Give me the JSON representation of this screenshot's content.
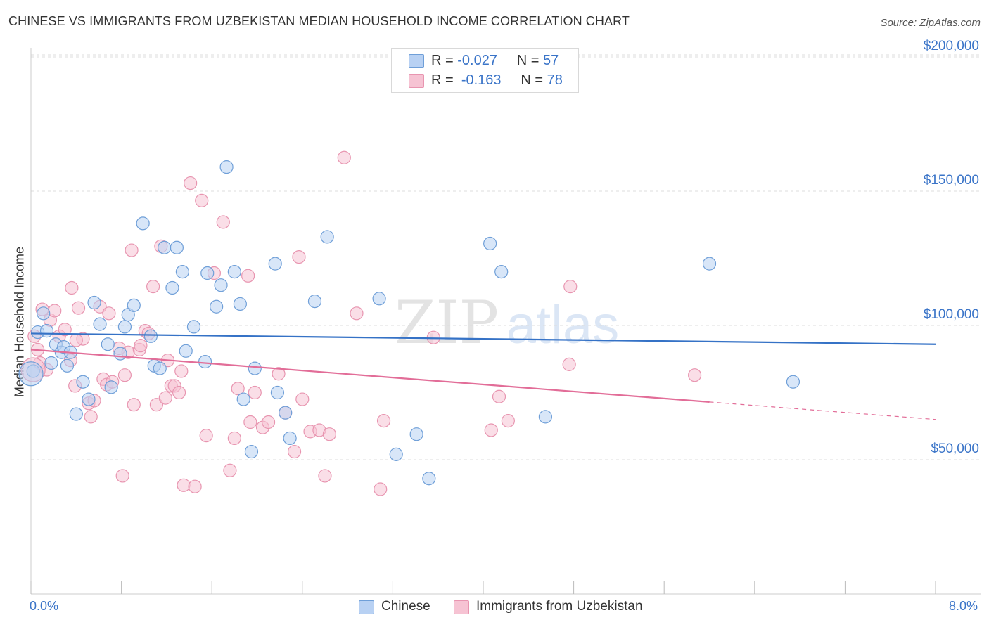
{
  "title": "CHINESE VS IMMIGRANTS FROM UZBEKISTAN MEDIAN HOUSEHOLD INCOME CORRELATION CHART",
  "source": "Source: ZipAtlas.com",
  "watermark": {
    "zip": "ZIP",
    "atlas": "atlas"
  },
  "legend": {
    "rows": [
      {
        "r_label": "R =",
        "r_value": "-0.027",
        "n_label": "N =",
        "n_value": "57"
      },
      {
        "r_label": "R =",
        "r_value": "-0.163",
        "n_label": "N =",
        "n_value": "78"
      }
    ]
  },
  "colors": {
    "blue_fill": "#b8d1f3",
    "blue_stroke": "#6f9fd8",
    "blue_line": "#3572c6",
    "pink_fill": "#f6c3d3",
    "pink_stroke": "#e895b0",
    "pink_line": "#e26d98",
    "axis_text": "#3a74c8",
    "grid": "#dddddd"
  },
  "chart_data": {
    "type": "scatter",
    "title": "CHINESE VS IMMIGRANTS FROM UZBEKISTAN MEDIAN HOUSEHOLD INCOME CORRELATION CHART",
    "xlabel": "",
    "ylabel": "Median Household Income",
    "xlim": [
      0,
      8
    ],
    "ylim": [
      5000,
      215000
    ],
    "x_tick_labels": [
      "0.0%",
      "8.0%"
    ],
    "y_ticks": [
      50000,
      100000,
      150000,
      200000
    ],
    "y_tick_labels": [
      "$50,000",
      "$100,000",
      "$150,000",
      "$200,000"
    ],
    "grid": true,
    "series": [
      {
        "name": "Chinese",
        "r": -0.027,
        "n": 57,
        "trend": {
          "x0": 0.0,
          "y0": 97000,
          "x1": 8.0,
          "y1": 93000,
          "solid_until": 8.0
        },
        "points": [
          [
            0.02,
            83000
          ],
          [
            0.06,
            97500
          ],
          [
            0.11,
            104500
          ],
          [
            0.14,
            98000
          ],
          [
            0.18,
            86000
          ],
          [
            0.22,
            93000
          ],
          [
            0.27,
            90000
          ],
          [
            0.29,
            92000
          ],
          [
            0.32,
            85000
          ],
          [
            0.35,
            90000
          ],
          [
            0.4,
            67000
          ],
          [
            0.46,
            79000
          ],
          [
            0.51,
            72500
          ],
          [
            0.56,
            108500
          ],
          [
            0.61,
            100500
          ],
          [
            0.68,
            93000
          ],
          [
            0.71,
            77000
          ],
          [
            0.79,
            89500
          ],
          [
            0.83,
            99500
          ],
          [
            0.86,
            104000
          ],
          [
            0.91,
            107500
          ],
          [
            0.99,
            138000
          ],
          [
            1.06,
            96000
          ],
          [
            1.09,
            85000
          ],
          [
            1.14,
            84000
          ],
          [
            1.18,
            129000
          ],
          [
            1.25,
            114000
          ],
          [
            1.29,
            129000
          ],
          [
            1.34,
            120000
          ],
          [
            1.37,
            90500
          ],
          [
            1.44,
            99500
          ],
          [
            1.54,
            86500
          ],
          [
            1.56,
            119500
          ],
          [
            1.64,
            107000
          ],
          [
            1.68,
            115000
          ],
          [
            1.73,
            159000
          ],
          [
            1.8,
            120000
          ],
          [
            1.85,
            108000
          ],
          [
            1.88,
            72500
          ],
          [
            1.95,
            53000
          ],
          [
            1.98,
            84000
          ],
          [
            2.16,
            123000
          ],
          [
            2.18,
            75000
          ],
          [
            2.25,
            67500
          ],
          [
            2.29,
            58000
          ],
          [
            2.51,
            109000
          ],
          [
            2.62,
            133000
          ],
          [
            3.08,
            110000
          ],
          [
            3.23,
            52000
          ],
          [
            3.41,
            59500
          ],
          [
            3.52,
            43000
          ],
          [
            4.06,
            130500
          ],
          [
            4.16,
            120000
          ],
          [
            4.55,
            66000
          ],
          [
            6.0,
            123000
          ],
          [
            6.74,
            79000
          ],
          [
            0.0,
            82000
          ]
        ]
      },
      {
        "name": "Immigrants from Uzbekistan",
        "r": -0.163,
        "n": 78,
        "trend": {
          "x0": 0.0,
          "y0": 91000,
          "x1": 8.0,
          "y1": 65000,
          "solid_until": 6.0
        },
        "points": [
          [
            0.03,
            96000
          ],
          [
            0.06,
            91000
          ],
          [
            0.1,
            106000
          ],
          [
            0.14,
            83500
          ],
          [
            0.17,
            102000
          ],
          [
            0.21,
            105500
          ],
          [
            0.25,
            96000
          ],
          [
            0.3,
            98500
          ],
          [
            0.35,
            87000
          ],
          [
            0.36,
            114000
          ],
          [
            0.39,
            77500
          ],
          [
            0.42,
            106500
          ],
          [
            0.46,
            95000
          ],
          [
            0.51,
            71000
          ],
          [
            0.53,
            66000
          ],
          [
            0.56,
            72000
          ],
          [
            0.61,
            107000
          ],
          [
            0.64,
            80000
          ],
          [
            0.67,
            78000
          ],
          [
            0.69,
            104500
          ],
          [
            0.72,
            79000
          ],
          [
            0.78,
            91500
          ],
          [
            0.81,
            44000
          ],
          [
            0.83,
            81500
          ],
          [
            0.86,
            90000
          ],
          [
            0.89,
            128000
          ],
          [
            0.91,
            70500
          ],
          [
            0.96,
            91000
          ],
          [
            1.01,
            98000
          ],
          [
            1.04,
            97000
          ],
          [
            1.08,
            114500
          ],
          [
            1.11,
            70500
          ],
          [
            1.15,
            129500
          ],
          [
            1.19,
            73000
          ],
          [
            1.21,
            87000
          ],
          [
            1.24,
            77500
          ],
          [
            1.27,
            77500
          ],
          [
            1.31,
            75000
          ],
          [
            1.35,
            40500
          ],
          [
            1.41,
            153000
          ],
          [
            1.45,
            40000
          ],
          [
            1.51,
            146500
          ],
          [
            1.55,
            59000
          ],
          [
            1.62,
            119500
          ],
          [
            1.7,
            138500
          ],
          [
            1.76,
            46000
          ],
          [
            1.8,
            58000
          ],
          [
            1.83,
            76500
          ],
          [
            1.92,
            118500
          ],
          [
            1.98,
            75000
          ],
          [
            2.05,
            62000
          ],
          [
            2.1,
            64000
          ],
          [
            2.19,
            82000
          ],
          [
            2.25,
            67500
          ],
          [
            2.33,
            53000
          ],
          [
            2.37,
            125500
          ],
          [
            2.4,
            72500
          ],
          [
            2.47,
            60500
          ],
          [
            2.55,
            61000
          ],
          [
            2.6,
            44000
          ],
          [
            2.64,
            59500
          ],
          [
            2.77,
            162500
          ],
          [
            2.88,
            104500
          ],
          [
            3.09,
            39000
          ],
          [
            3.12,
            64500
          ],
          [
            3.56,
            95500
          ],
          [
            4.07,
            61000
          ],
          [
            4.14,
            73500
          ],
          [
            4.22,
            64500
          ],
          [
            4.77,
            114500
          ],
          [
            4.76,
            85500
          ],
          [
            5.87,
            81500
          ],
          [
            0.08,
            86000
          ],
          [
            0.4,
            94500
          ],
          [
            0.97,
            92500
          ],
          [
            1.33,
            83000
          ],
          [
            1.94,
            64000
          ],
          [
            0.02,
            83500
          ]
        ]
      }
    ]
  },
  "bottom_legend": [
    {
      "label": "Chinese"
    },
    {
      "label": "Immigrants from Uzbekistan"
    }
  ]
}
